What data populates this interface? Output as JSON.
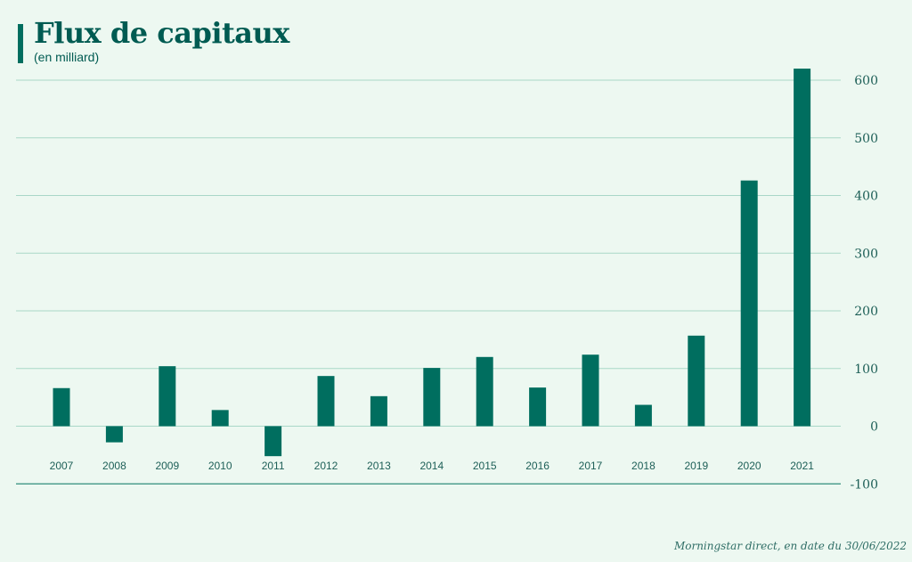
{
  "title": "Flux de capitaux",
  "subtitle": "(en milliard)",
  "source": "Morningstar direct, en date du 30/06/2022",
  "colors": {
    "background": "#edf8f1",
    "bar": "#006e5f",
    "grid": "#a9d7c8",
    "text": "#005b52"
  },
  "chart_data": {
    "type": "bar",
    "categories": [
      "2007",
      "2008",
      "2009",
      "2010",
      "2011",
      "2012",
      "2013",
      "2014",
      "2015",
      "2016",
      "2017",
      "2018",
      "2019",
      "2020",
      "2021"
    ],
    "values": [
      66,
      -28,
      104,
      28,
      -52,
      87,
      52,
      101,
      120,
      67,
      124,
      37,
      157,
      426,
      620
    ],
    "title": "Flux de capitaux",
    "subtitle": "(en milliard)",
    "xlabel": "",
    "ylabel": "",
    "ylim": [
      -100,
      650
    ],
    "yticks": [
      600,
      500,
      400,
      300,
      200,
      100,
      0,
      -100
    ],
    "grid": true,
    "y_axis_side": "right"
  }
}
